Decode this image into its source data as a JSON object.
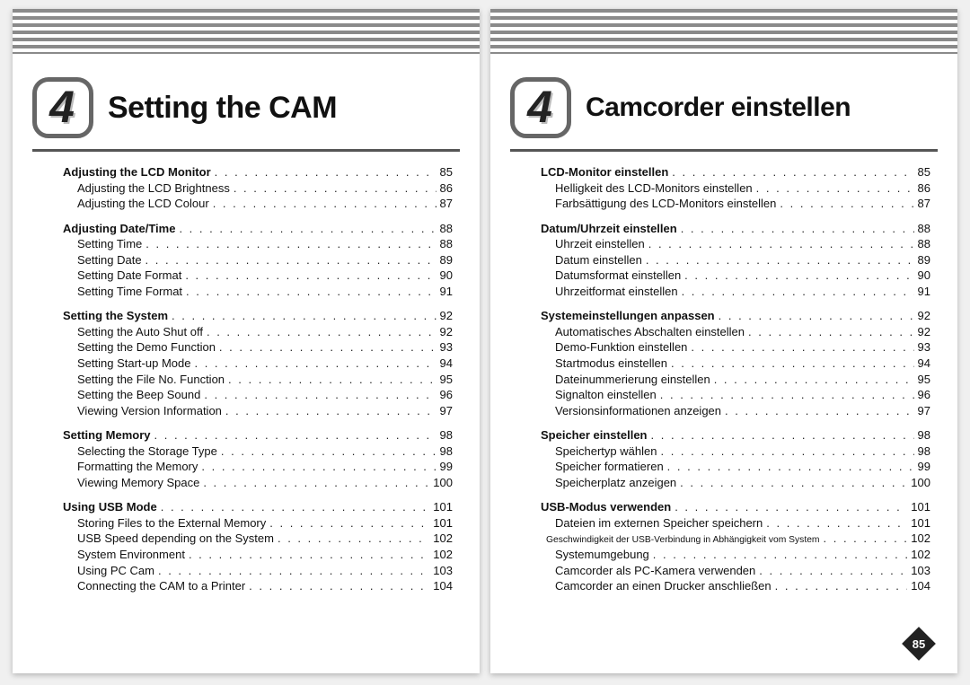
{
  "chapter_number": "4",
  "pages": [
    {
      "title": "Setting the CAM",
      "title_class": "",
      "sections": [
        {
          "heading": {
            "label": "Adjusting the LCD Monitor",
            "page": "85"
          },
          "items": [
            {
              "label": "Adjusting the LCD Brightness",
              "page": "86"
            },
            {
              "label": "Adjusting the LCD Colour",
              "page": "87"
            }
          ]
        },
        {
          "heading": {
            "label": "Adjusting Date/Time",
            "page": "88"
          },
          "items": [
            {
              "label": "Setting Time",
              "page": "88"
            },
            {
              "label": "Setting Date",
              "page": "89"
            },
            {
              "label": "Setting Date Format",
              "page": "90"
            },
            {
              "label": "Setting Time Format",
              "page": "91"
            }
          ]
        },
        {
          "heading": {
            "label": "Setting the System",
            "page": "92"
          },
          "items": [
            {
              "label": "Setting the Auto Shut off",
              "page": "92"
            },
            {
              "label": "Setting the Demo Function",
              "page": "93"
            },
            {
              "label": "Setting Start-up Mode",
              "page": "94"
            },
            {
              "label": "Setting the File No. Function",
              "page": "95"
            },
            {
              "label": "Setting the Beep Sound",
              "page": "96"
            },
            {
              "label": "Viewing Version Information",
              "page": "97"
            }
          ]
        },
        {
          "heading": {
            "label": "Setting Memory",
            "page": "98"
          },
          "items": [
            {
              "label": "Selecting the Storage Type",
              "page": "98"
            },
            {
              "label": "Formatting the Memory",
              "page": "99"
            },
            {
              "label": "Viewing Memory Space",
              "page": "100"
            }
          ]
        },
        {
          "heading": {
            "label": "Using USB Mode",
            "page": "101"
          },
          "items": [
            {
              "label": "Storing Files to the External Memory",
              "page": "101"
            },
            {
              "label": "USB Speed depending on the System",
              "page": "102"
            },
            {
              "label": "System Environment",
              "page": "102"
            },
            {
              "label": "Using PC Cam",
              "page": "103"
            },
            {
              "label": "Connecting the CAM to a Printer",
              "page": "104"
            }
          ]
        }
      ],
      "show_corner": false
    },
    {
      "title": "Camcorder einstellen",
      "title_class": "small",
      "sections": [
        {
          "heading": {
            "label": "LCD-Monitor einstellen",
            "page": "85"
          },
          "items": [
            {
              "label": "Helligkeit des LCD-Monitors einstellen",
              "page": "86"
            },
            {
              "label": "Farbsättigung des LCD-Monitors einstellen",
              "page": "87"
            }
          ]
        },
        {
          "heading": {
            "label": "Datum/Uhrzeit einstellen",
            "page": "88"
          },
          "items": [
            {
              "label": "Uhrzeit einstellen",
              "page": "88"
            },
            {
              "label": "Datum einstellen",
              "page": "89"
            },
            {
              "label": "Datumsformat einstellen",
              "page": "90"
            },
            {
              "label": "Uhrzeitformat einstellen",
              "page": "91"
            }
          ]
        },
        {
          "heading": {
            "label": "Systemeinstellungen anpassen",
            "page": "92"
          },
          "items": [
            {
              "label": "Automatisches Abschalten einstellen",
              "page": "92"
            },
            {
              "label": "Demo-Funktion einstellen",
              "page": "93"
            },
            {
              "label": "Startmodus einstellen",
              "page": "94"
            },
            {
              "label": "Dateinummerierung einstellen",
              "page": "95"
            },
            {
              "label": "Signalton einstellen",
              "page": "96"
            },
            {
              "label": "Versionsinformationen anzeigen",
              "page": "97"
            }
          ]
        },
        {
          "heading": {
            "label": "Speicher einstellen",
            "page": "98"
          },
          "items": [
            {
              "label": "Speichertyp wählen",
              "page": "98"
            },
            {
              "label": "Speicher formatieren",
              "page": "99"
            },
            {
              "label": "Speicherplatz anzeigen",
              "page": "100"
            }
          ]
        },
        {
          "heading": {
            "label": "USB-Modus verwenden",
            "page": "101"
          },
          "items": [
            {
              "label": "Dateien im externen Speicher speichern",
              "page": "101"
            },
            {
              "label": "Geschwindigkeit der USB-Verbindung in Abhängigkeit vom System",
              "page": "102",
              "smalltext": true
            },
            {
              "label": "Systemumgebung",
              "page": "102"
            },
            {
              "label": "Camcorder als PC-Kamera verwenden",
              "page": "103"
            },
            {
              "label": "Camcorder an einen Drucker anschließen",
              "page": "104"
            }
          ]
        }
      ],
      "show_corner": true,
      "corner_page": "85"
    }
  ]
}
